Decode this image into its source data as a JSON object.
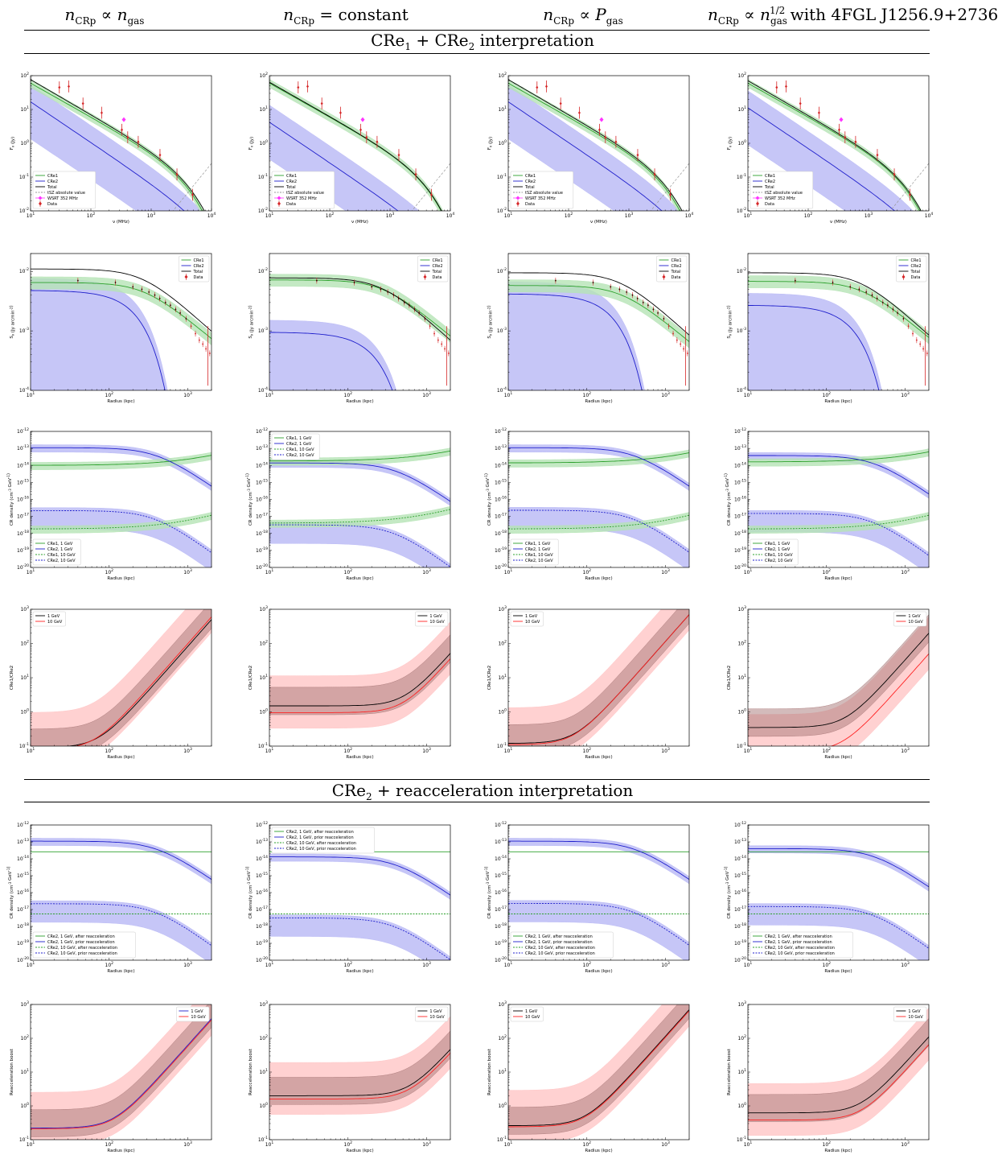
{
  "header": {
    "columns": [
      {
        "main": "n",
        "sub": "CRp",
        "rel": " ∝ ",
        "main2": "n",
        "sub2": "gas",
        "sup2": "",
        "suffix": ""
      },
      {
        "main": "n",
        "sub": "CRp",
        "rel": " = constant",
        "main2": "",
        "sub2": "",
        "sup2": "",
        "suffix": ""
      },
      {
        "main": "n",
        "sub": "CRp",
        "rel": " ∝ ",
        "main2": "P",
        "sub2": "gas",
        "sup2": "",
        "suffix": ""
      },
      {
        "main": "n",
        "sub": "CRp",
        "rel": " ∝ ",
        "main2": "n",
        "sub2": "gas",
        "sup2": "1/2",
        "suffix": " with 4FGL J1256.9+2736"
      }
    ]
  },
  "sections": {
    "top": {
      "prefix": "CRe",
      "s1": "1",
      "mid": " + CRe",
      "s2": "2",
      "rest": " interpretation"
    },
    "bottom": {
      "prefix": "CRe",
      "s1": "2",
      "mid": " + reacceleration interpretation",
      "s2": "",
      "rest": ""
    }
  },
  "colors": {
    "cre1": "#2ca02c",
    "cre2": "#1f1fcc",
    "total": "#000000",
    "ratio_red": "#ff2222",
    "band_blue": "#b8b8f5",
    "band_green": "#b5e3b5",
    "band_red": "#ffc2c2",
    "data": "#d62728",
    "wsrt": "#ff33ff"
  },
  "rows": [
    {
      "id": "spectrum",
      "xlabel": "ν (MHz)",
      "ylabel": "F_ν (Jy)",
      "xticks": [
        "10^1",
        "10^2",
        "10^3",
        "10^4"
      ],
      "yticks": [
        "10^-2",
        "10^-1",
        "10^0",
        "10^1",
        "10^2"
      ],
      "xlim": [
        10,
        10000
      ],
      "ylim": [
        0.01,
        100
      ],
      "legend": [
        "CRe1",
        "CRe2",
        "Total",
        "tSZ absolute value",
        "WSRT 352 MHz",
        "Data"
      ]
    },
    {
      "id": "profile",
      "xlabel": "Radius (kpc)",
      "ylabel": "S_ν (Jy arcmin^-2)",
      "xticks": [
        "10^1",
        "10^2",
        "10^3"
      ],
      "yticks": [
        "10^-4",
        "10^-3",
        "10^-2"
      ],
      "xlim": [
        10,
        2000
      ],
      "ylim": [
        0.0001,
        0.02
      ],
      "legend": [
        "CRe1",
        "CRe2",
        "Total",
        "Data"
      ]
    },
    {
      "id": "density",
      "xlabel": "Radius (kpc)",
      "ylabel": "CR density (cm^-3 GeV^-1)",
      "xticks": [
        "10^1",
        "10^2",
        "10^3"
      ],
      "yticks": [
        "10^-20",
        "10^-19",
        "10^-18",
        "10^-17",
        "10^-16",
        "10^-15",
        "10^-14",
        "10^-13",
        "10^-12"
      ],
      "xlim": [
        10,
        2000
      ],
      "ylim": [
        1e-20,
        1e-12
      ],
      "legend": [
        "CRe1, 1 GeV",
        "CRe2, 1 GeV",
        "CRe1, 10 GeV",
        "CRe2, 10 GeV"
      ]
    },
    {
      "id": "ratio",
      "xlabel": "Radius (kpc)",
      "ylabel": "CRe1/CRe2",
      "xticks": [
        "10^1",
        "10^2",
        "10^3"
      ],
      "yticks": [
        "10^-1",
        "10^0",
        "10^1",
        "10^2",
        "10^3"
      ],
      "xlim": [
        10,
        2000
      ],
      "ylim": [
        0.1,
        1000
      ],
      "legend": [
        "1 GeV",
        "10 GeV"
      ]
    },
    {
      "id": "reacc_density",
      "xlabel": "Radius (kpc)",
      "ylabel": "CR density (cm^-3 GeV^-1)",
      "xticks": [
        "10^1",
        "10^2",
        "10^3"
      ],
      "yticks": [
        "10^-20",
        "10^-19",
        "10^-18",
        "10^-17",
        "10^-16",
        "10^-15",
        "10^-14",
        "10^-13",
        "10^-12"
      ],
      "xlim": [
        10,
        2000
      ],
      "ylim": [
        1e-20,
        1e-12
      ],
      "legend": [
        "CRe2, 1 GeV, after reacceleration",
        "CRe2, 1 GeV, prior reacceleration",
        "CRe2, 10 GeV, after reacceleration",
        "CRe2, 10 GeV, prior reacceleration"
      ]
    },
    {
      "id": "boost",
      "xlabel": "Radius (kpc)",
      "ylabel": "Reacceleration boost",
      "xticks": [
        "10^1",
        "10^2",
        "10^3"
      ],
      "yticks": [
        "10^-1",
        "10^0",
        "10^1",
        "10^2",
        "10^3"
      ],
      "xlim": [
        10,
        2000
      ],
      "ylim": [
        0.1,
        1000
      ],
      "legend": [
        "1 GeV",
        "10 GeV"
      ]
    }
  ],
  "chart_data": [
    {
      "type": "line",
      "row": "spectrum",
      "xscale": "log",
      "yscale": "log",
      "xlabel": "ν (MHz)",
      "ylabel": "F_ν (Jy)",
      "observations": {
        "name": "Data",
        "x": [
          30,
          43,
          74,
          151,
          326,
          408,
          610,
          1400,
          2675,
          4850
        ],
        "y": [
          45,
          48,
          15,
          8,
          2.5,
          1.5,
          1.1,
          0.45,
          0.12,
          0.03
        ]
      },
      "wsrt": {
        "name": "WSRT 352 MHz",
        "x": 352,
        "y": 5.0
      },
      "columns": [
        {
          "cre1_1ghz_norm": 1.0,
          "cre2_norm": 0.6
        },
        {
          "cre1_1ghz_norm": 1.0,
          "cre2_norm": 0.15
        },
        {
          "cre1_1ghz_norm": 1.0,
          "cre2_norm": 0.6
        },
        {
          "cre1_1ghz_norm": 1.0,
          "cre2_norm": 0.4
        }
      ]
    },
    {
      "type": "line",
      "row": "profile",
      "xscale": "log",
      "yscale": "log",
      "xlabel": "Radius (kpc)",
      "ylabel": "S_ν (Jy arcmin^-2)",
      "columns": [
        {
          "total_core": 0.011,
          "cre1_core": 0.0065,
          "cre2_core": 0.0048
        },
        {
          "total_core": 0.0078,
          "cre1_core": 0.0072,
          "cre2_core": 0.00095
        },
        {
          "total_core": 0.0095,
          "cre1_core": 0.0058,
          "cre2_core": 0.0042
        },
        {
          "total_core": 0.0095,
          "cre1_core": 0.0068,
          "cre2_core": 0.0027
        }
      ]
    },
    {
      "type": "line",
      "row": "density",
      "xscale": "log",
      "yscale": "log",
      "xlabel": "Radius (kpc)",
      "ylabel": "CR density (cm^-3 GeV^-1)",
      "columns": [
        {
          "cre1_1gev_core": 1e-14,
          "cre2_1gev_core": 1.1e-13,
          "cre1_10gev_core": 1.8e-18,
          "cre2_10gev_core": 2.2e-17
        },
        {
          "cre1_1gev_core": 1.8e-14,
          "cre2_1gev_core": 1.4e-14,
          "cre1_10gev_core": 4e-18,
          "cre2_10gev_core": 3.2e-18
        },
        {
          "cre1_1gev_core": 1.4e-14,
          "cre2_1gev_core": 1.1e-13,
          "cre1_10gev_core": 1.8e-18,
          "cre2_10gev_core": 2.3e-17
        },
        {
          "cre1_1gev_core": 1.6e-14,
          "cre2_1gev_core": 3.8e-14,
          "cre1_10gev_core": 1.8e-18,
          "cre2_10gev_core": 1.5e-17
        }
      ]
    },
    {
      "type": "line",
      "row": "ratio",
      "xscale": "log",
      "yscale": "log",
      "xlabel": "Radius (kpc)",
      "ylabel": "CRe1/CRe2",
      "columns": [
        {
          "gev1_core": 0.09,
          "gev10_core": 0.08,
          "gev1_outer": 500,
          "gev10_outer": 600
        },
        {
          "gev1_core": 1.5,
          "gev10_core": 0.95,
          "gev1_outer": 50,
          "gev10_outer": 35
        },
        {
          "gev1_core": 0.12,
          "gev10_core": 0.11,
          "gev1_outer": 700,
          "gev10_outer": 700
        },
        {
          "gev1_core": 0.35,
          "gev10_core": 0.07,
          "gev1_outer": 200,
          "gev10_outer": 50
        }
      ]
    },
    {
      "type": "line",
      "row": "reacc_density",
      "xscale": "log",
      "yscale": "log",
      "xlabel": "Radius (kpc)",
      "ylabel": "CR density (cm^-3 GeV^-1)",
      "columns": [
        {
          "after_1gev": 2.6e-14,
          "prior_1gev_core": 1.1e-13,
          "after_10gev": 5.5e-18,
          "prior_10gev_core": 2.2e-17
        },
        {
          "after_1gev": 2.6e-14,
          "prior_1gev_core": 1.3e-14,
          "after_10gev": 5.5e-18,
          "prior_10gev_core": 3.2e-18
        },
        {
          "after_1gev": 2.6e-14,
          "prior_1gev_core": 1.1e-13,
          "after_10gev": 5.5e-18,
          "prior_10gev_core": 2.3e-17
        },
        {
          "after_1gev": 2.6e-14,
          "prior_1gev_core": 4e-14,
          "after_10gev": 5.5e-18,
          "prior_10gev_core": 1.5e-17
        }
      ]
    },
    {
      "type": "line",
      "row": "boost",
      "xscale": "log",
      "yscale": "log",
      "xlabel": "Radius (kpc)",
      "ylabel": "Reacceleration boost",
      "columns": [
        {
          "gev1_core": 0.22,
          "gev10_core": 0.21,
          "gev1_outer": 380,
          "gev10_outer": 350
        },
        {
          "gev1_core": 2.0,
          "gev10_core": 1.6,
          "gev1_outer": 45,
          "gev10_outer": 35
        },
        {
          "gev1_core": 0.26,
          "gev10_core": 0.24,
          "gev1_outer": 700,
          "gev10_outer": 650
        },
        {
          "gev1_core": 0.62,
          "gev10_core": 0.38,
          "gev1_outer": 110,
          "gev10_outer": 65
        }
      ]
    }
  ]
}
